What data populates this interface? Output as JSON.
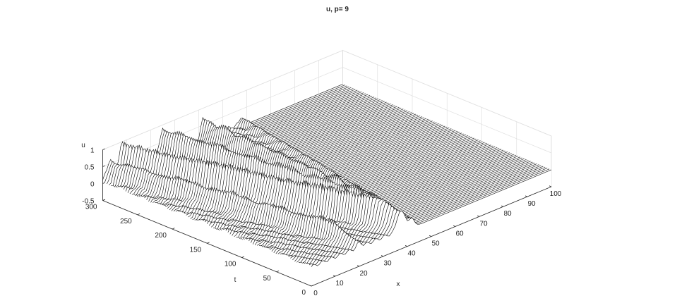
{
  "chart_data": {
    "type": "mesh",
    "title": "u, p=  9",
    "xlabel": "x",
    "ylabel": "t",
    "zlabel": "u",
    "xlim": [
      0,
      100
    ],
    "ylim": [
      0,
      300
    ],
    "zlim": [
      -0.5,
      1
    ],
    "xticks": [
      0,
      10,
      20,
      30,
      40,
      50,
      60,
      70,
      80,
      90,
      100
    ],
    "yticks": [
      0,
      50,
      100,
      150,
      200,
      250,
      300
    ],
    "zticks": [
      -0.5,
      0,
      0.5,
      1
    ],
    "grid": true,
    "colors": {
      "mesh_line": "#000000",
      "mesh_face": "#ffffff",
      "grid": "#e0e0e0",
      "axis": "#262626"
    },
    "ridges": [
      {
        "kind": "peak",
        "x": 38,
        "t": 0,
        "width": 2.2,
        "amplitude": 0.25
      },
      {
        "kind": "front",
        "description": "wave front moving right",
        "x_at_t0": 42,
        "x_at_t300": 58
      },
      {
        "kind": "soliton",
        "x_at_t0": 37,
        "x_at_t300": 25,
        "amplitude": 0.85
      },
      {
        "kind": "soliton",
        "x_at_t0": 36,
        "x_at_t300": 8,
        "amplitude": 0.9
      },
      {
        "kind": "soliton",
        "x_at_t0": 39,
        "x_at_t300": 42,
        "amplitude": 0.6
      },
      {
        "kind": "soliton",
        "x_at_t0": 20,
        "x_at_t300": 3,
        "amplitude": 0.55
      }
    ]
  }
}
